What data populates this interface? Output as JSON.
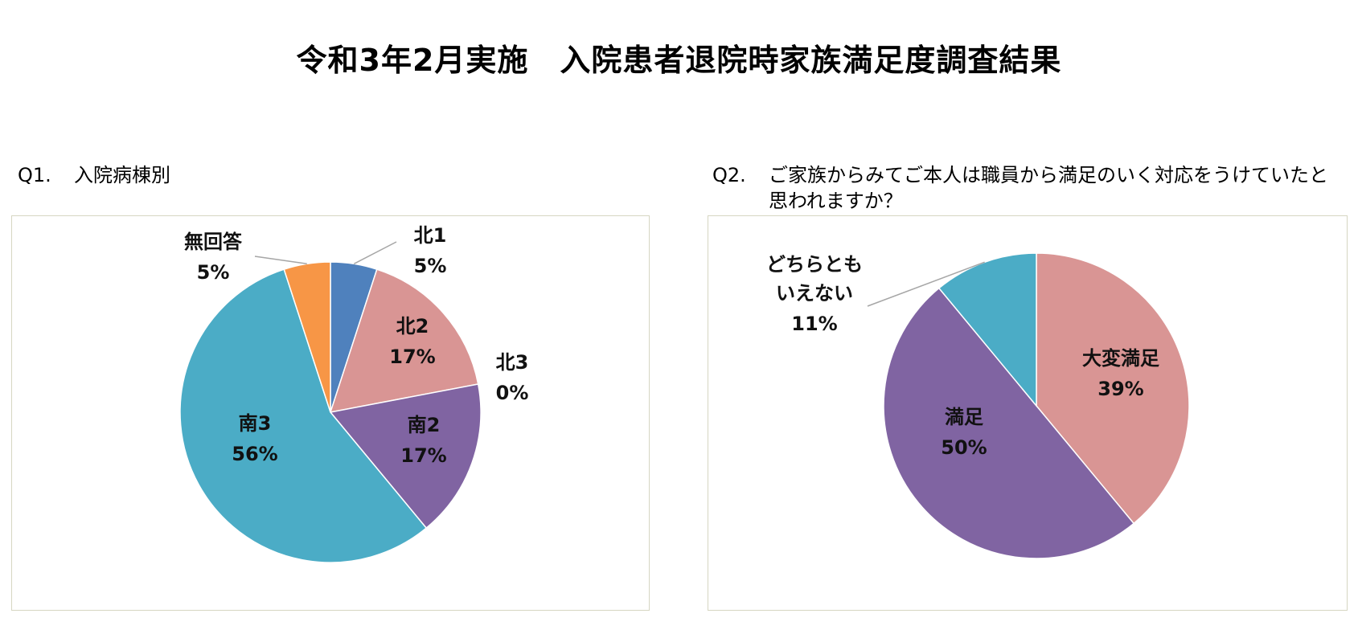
{
  "title": "令和3年2月実施　入院患者退院時家族満足度調査結果",
  "q1": {
    "number": "Q1.",
    "question": "入院病棟別"
  },
  "q2": {
    "number": "Q2.",
    "question": "ご家族からみてご本人は職員から満足のいく対応をうけていたと思われますか？"
  },
  "chart_data": [
    {
      "type": "pie",
      "title": "",
      "slices": [
        {
          "label": "北1",
          "value": 5,
          "percent_label": "5%",
          "color": "#4f81bd"
        },
        {
          "label": "北2",
          "value": 17,
          "percent_label": "17%",
          "color": "#d99594"
        },
        {
          "label": "北3",
          "value": 0,
          "percent_label": "0%",
          "color": "#9bbb59"
        },
        {
          "label": "南2",
          "value": 17,
          "percent_label": "17%",
          "color": "#8064a2"
        },
        {
          "label": "南3",
          "value": 56,
          "percent_label": "56%",
          "color": "#4bacc6"
        },
        {
          "label": "無回答",
          "value": 5,
          "percent_label": "5%",
          "color": "#f79646"
        }
      ]
    },
    {
      "type": "pie",
      "title": "",
      "slices": [
        {
          "label": "大変満足",
          "value": 39,
          "percent_label": "39%",
          "color": "#d99594"
        },
        {
          "label": "満足",
          "value": 50,
          "percent_label": "50%",
          "color": "#8064a2"
        },
        {
          "label": "どちらとも\nいえない",
          "value": 11,
          "percent_label": "11%",
          "color": "#4bacc6"
        }
      ]
    }
  ]
}
